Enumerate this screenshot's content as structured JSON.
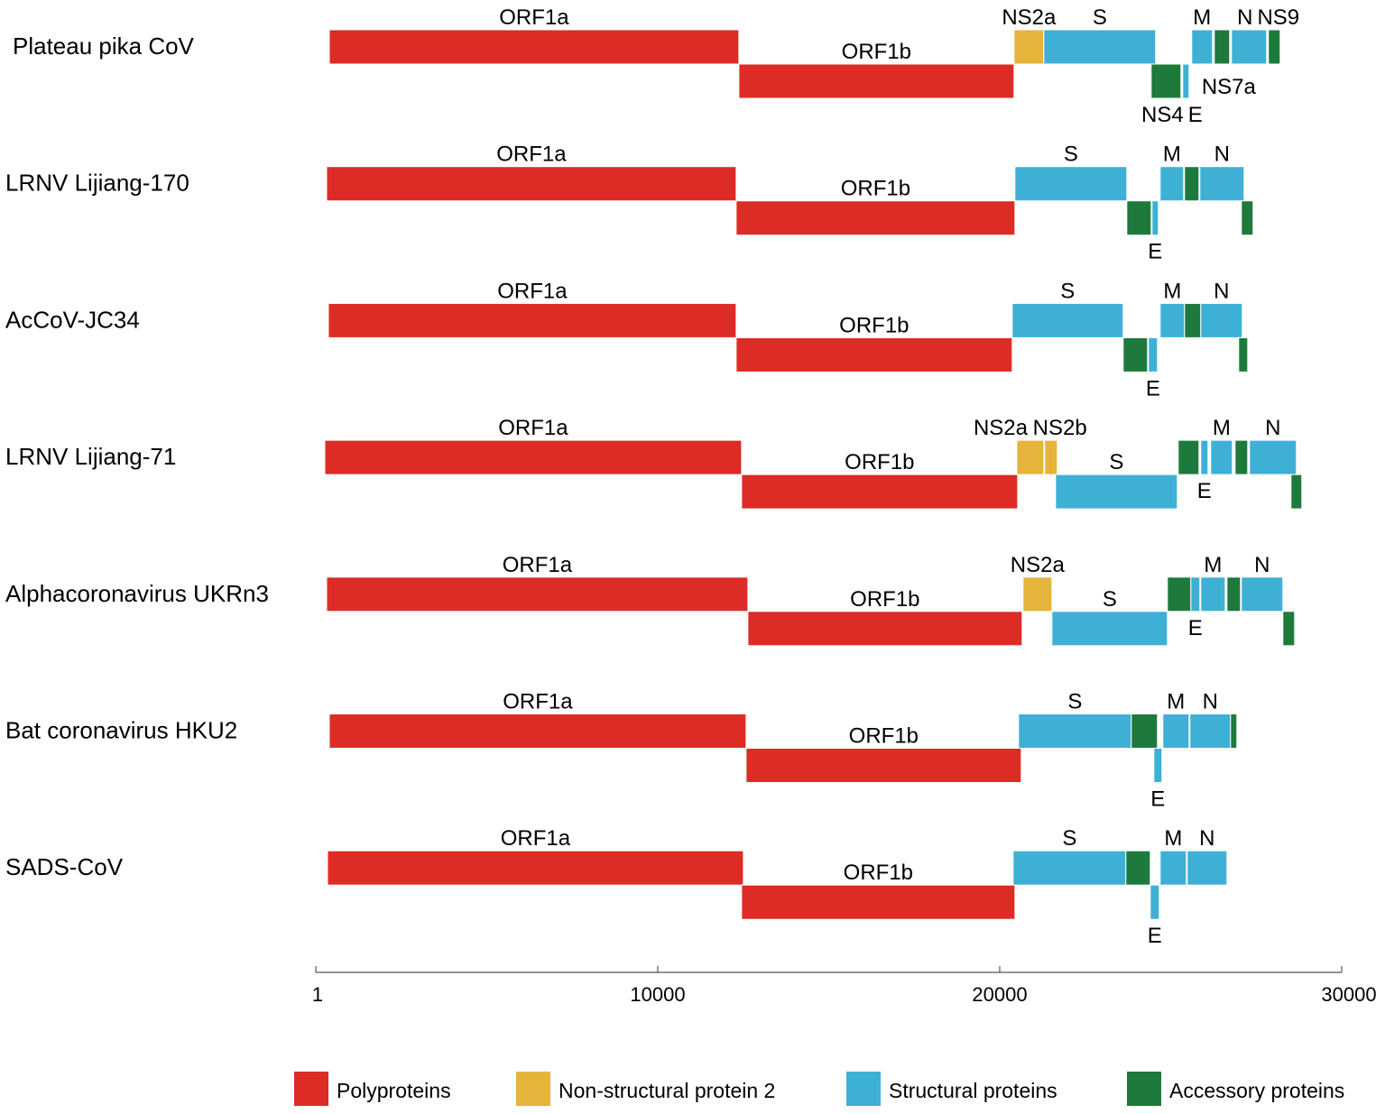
{
  "colors": {
    "polyprotein": "#dd2c25",
    "ns2": "#e6b43a",
    "structural": "#3fb0d5",
    "accessory": "#1e7a3c"
  },
  "axis": {
    "min": 1,
    "max": 30000,
    "ticks": [
      {
        "value": 1,
        "label": "1"
      },
      {
        "value": 10000,
        "label": "10000"
      },
      {
        "value": 20000,
        "label": "20000"
      },
      {
        "value": 30000,
        "label": "30000"
      }
    ]
  },
  "legend": [
    {
      "type": "polyprotein",
      "label": "Polyproteins"
    },
    {
      "type": "ns2",
      "label": "Non-structural protein 2"
    },
    {
      "type": "structural",
      "label": "Structural proteins"
    },
    {
      "type": "accessory",
      "label": "Accessory proteins"
    }
  ],
  "genomes": [
    {
      "name": "Plateau pika CoV",
      "genes": [
        {
          "start": 396,
          "end": 12372,
          "lane": "top",
          "type": "polyprotein",
          "label": "ORF1a",
          "label_pos": "above"
        },
        {
          "start": 12372,
          "end": 20418,
          "lane": "bottom",
          "type": "polyprotein",
          "label": "ORF1b",
          "label_pos": "above"
        },
        {
          "start": 20418,
          "end": 21289,
          "lane": "top",
          "type": "ns2",
          "label": "NS2a",
          "label_pos": "above"
        },
        {
          "start": 21289,
          "end": 24560,
          "lane": "top",
          "type": "structural",
          "label": "S",
          "label_pos": "above"
        },
        {
          "start": 24428,
          "end": 25298,
          "lane": "bottom",
          "type": "accessory",
          "label": "NS4",
          "label_pos": "below"
        },
        {
          "start": 25351,
          "end": 25536,
          "lane": "bottom",
          "type": "structural",
          "label": "E",
          "label_pos": "below-right"
        },
        {
          "start": 25615,
          "end": 26222,
          "lane": "top",
          "type": "structural",
          "label": "M",
          "label_pos": "above"
        },
        {
          "start": 26275,
          "end": 26723,
          "lane": "top",
          "type": "accessory",
          "label": "NS7a",
          "label_pos": "lower"
        },
        {
          "start": 26776,
          "end": 27805,
          "lane": "top",
          "type": "structural",
          "label": "N",
          "label_pos": "above"
        },
        {
          "start": 27857,
          "end": 28200,
          "lane": "top",
          "type": "accessory",
          "label": "NS9",
          "label_pos": "above"
        }
      ]
    },
    {
      "name": "LRNV  Lijiang-170",
      "genes": [
        {
          "start": 317,
          "end": 12293,
          "lane": "top",
          "type": "polyprotein",
          "label": "ORF1a",
          "label_pos": "above"
        },
        {
          "start": 12293,
          "end": 20445,
          "lane": "bottom",
          "type": "polyprotein",
          "label": "ORF1b",
          "label_pos": "above"
        },
        {
          "start": 20445,
          "end": 23716,
          "lane": "top",
          "type": "structural",
          "label": "S",
          "label_pos": "above"
        },
        {
          "start": 23716,
          "end": 24428,
          "lane": "bottom",
          "type": "accessory",
          "label": "",
          "label_pos": ""
        },
        {
          "start": 24454,
          "end": 24639,
          "lane": "bottom",
          "type": "structural",
          "label": "E",
          "label_pos": "below"
        },
        {
          "start": 24692,
          "end": 25378,
          "lane": "top",
          "type": "structural",
          "label": "M",
          "label_pos": "above"
        },
        {
          "start": 25404,
          "end": 25826,
          "lane": "top",
          "type": "accessory",
          "label": "",
          "label_pos": ""
        },
        {
          "start": 25852,
          "end": 27145,
          "lane": "top",
          "type": "structural",
          "label": "N",
          "label_pos": "above"
        },
        {
          "start": 27066,
          "end": 27409,
          "lane": "bottom",
          "type": "accessory",
          "label": "",
          "label_pos": ""
        }
      ]
    },
    {
      "name": "AcCoV-JC34",
      "genes": [
        {
          "start": 369,
          "end": 12293,
          "lane": "top",
          "type": "polyprotein",
          "label": "ORF1a",
          "label_pos": "above"
        },
        {
          "start": 12293,
          "end": 20365,
          "lane": "bottom",
          "type": "polyprotein",
          "label": "ORF1b",
          "label_pos": "above"
        },
        {
          "start": 20365,
          "end": 23610,
          "lane": "top",
          "type": "structural",
          "label": "S",
          "label_pos": "above"
        },
        {
          "start": 23610,
          "end": 24323,
          "lane": "bottom",
          "type": "accessory",
          "label": "",
          "label_pos": ""
        },
        {
          "start": 24349,
          "end": 24613,
          "lane": "bottom",
          "type": "structural",
          "label": "E",
          "label_pos": "below"
        },
        {
          "start": 24692,
          "end": 25404,
          "lane": "top",
          "type": "structural",
          "label": "M",
          "label_pos": "above"
        },
        {
          "start": 25404,
          "end": 25879,
          "lane": "top",
          "type": "accessory",
          "label": "",
          "label_pos": ""
        },
        {
          "start": 25879,
          "end": 27093,
          "lane": "top",
          "type": "structural",
          "label": "N",
          "label_pos": "above"
        },
        {
          "start": 26987,
          "end": 27251,
          "lane": "bottom",
          "type": "accessory",
          "label": "",
          "label_pos": ""
        }
      ]
    },
    {
      "name": "LRNV Lijiang-71",
      "genes": [
        {
          "start": 264,
          "end": 12451,
          "lane": "top",
          "type": "polyprotein",
          "label": "ORF1a",
          "label_pos": "above"
        },
        {
          "start": 12451,
          "end": 20524,
          "lane": "bottom",
          "type": "polyprotein",
          "label": "ORF1b",
          "label_pos": "above"
        },
        {
          "start": 20498,
          "end": 21289,
          "lane": "top",
          "type": "ns2",
          "label": "NS2a",
          "label_pos": "above-left"
        },
        {
          "start": 21315,
          "end": 21684,
          "lane": "top",
          "type": "ns2",
          "label": "NS2b",
          "label_pos": "above"
        },
        {
          "start": 21632,
          "end": 25193,
          "lane": "bottom",
          "type": "structural",
          "label": "S",
          "label_pos": "above"
        },
        {
          "start": 25219,
          "end": 25826,
          "lane": "top",
          "type": "accessory",
          "label": "",
          "label_pos": ""
        },
        {
          "start": 25879,
          "end": 26090,
          "lane": "top",
          "type": "structural",
          "label": "E",
          "label_pos": "below"
        },
        {
          "start": 26169,
          "end": 26803,
          "lane": "top",
          "type": "structural",
          "label": "M",
          "label_pos": "above"
        },
        {
          "start": 26882,
          "end": 27251,
          "lane": "top",
          "type": "accessory",
          "label": "",
          "label_pos": ""
        },
        {
          "start": 27303,
          "end": 28675,
          "lane": "top",
          "type": "structural",
          "label": "N",
          "label_pos": "above"
        },
        {
          "start": 28517,
          "end": 28833,
          "lane": "bottom",
          "type": "accessory",
          "label": "",
          "label_pos": ""
        }
      ]
    },
    {
      "name": "Alphacoronavirus UKRn3",
      "genes": [
        {
          "start": 317,
          "end": 12636,
          "lane": "top",
          "type": "polyprotein",
          "label": "ORF1a",
          "label_pos": "above"
        },
        {
          "start": 12636,
          "end": 20655,
          "lane": "bottom",
          "type": "polyprotein",
          "label": "ORF1b",
          "label_pos": "above"
        },
        {
          "start": 20682,
          "end": 21526,
          "lane": "top",
          "type": "ns2",
          "label": "NS2a",
          "label_pos": "above"
        },
        {
          "start": 21526,
          "end": 24903,
          "lane": "bottom",
          "type": "structural",
          "label": "S",
          "label_pos": "above"
        },
        {
          "start": 24903,
          "end": 25589,
          "lane": "top",
          "type": "accessory",
          "label": "",
          "label_pos": ""
        },
        {
          "start": 25589,
          "end": 25852,
          "lane": "top",
          "type": "structural",
          "label": "E",
          "label_pos": "below"
        },
        {
          "start": 25879,
          "end": 26592,
          "lane": "top",
          "type": "structural",
          "label": "M",
          "label_pos": "above"
        },
        {
          "start": 26645,
          "end": 27040,
          "lane": "top",
          "type": "accessory",
          "label": "",
          "label_pos": ""
        },
        {
          "start": 27066,
          "end": 28280,
          "lane": "top",
          "type": "structural",
          "label": "N",
          "label_pos": "above"
        },
        {
          "start": 28280,
          "end": 28623,
          "lane": "bottom",
          "type": "accessory",
          "label": "",
          "label_pos": ""
        }
      ]
    },
    {
      "name": "Bat coronavirus HKU2",
      "genes": [
        {
          "start": 396,
          "end": 12583,
          "lane": "top",
          "type": "polyprotein",
          "label": "ORF1a",
          "label_pos": "above"
        },
        {
          "start": 12583,
          "end": 20629,
          "lane": "bottom",
          "type": "polyprotein",
          "label": "ORF1b",
          "label_pos": "above"
        },
        {
          "start": 20550,
          "end": 23848,
          "lane": "top",
          "type": "structural",
          "label": "S",
          "label_pos": "above"
        },
        {
          "start": 23848,
          "end": 24613,
          "lane": "top",
          "type": "accessory",
          "label": "",
          "label_pos": ""
        },
        {
          "start": 24507,
          "end": 24744,
          "lane": "bottom",
          "type": "structural",
          "label": "E",
          "label_pos": "below"
        },
        {
          "start": 24771,
          "end": 25536,
          "lane": "top",
          "type": "structural",
          "label": "M",
          "label_pos": "above"
        },
        {
          "start": 25562,
          "end": 26750,
          "lane": "top",
          "type": "structural",
          "label": "N",
          "label_pos": "above"
        },
        {
          "start": 26750,
          "end": 26934,
          "lane": "top",
          "type": "accessory",
          "label": "",
          "label_pos": ""
        }
      ]
    },
    {
      "name": "SADS-CoV",
      "genes": [
        {
          "start": 343,
          "end": 12504,
          "lane": "top",
          "type": "polyprotein",
          "label": "ORF1a",
          "label_pos": "above"
        },
        {
          "start": 12451,
          "end": 20445,
          "lane": "bottom",
          "type": "polyprotein",
          "label": "ORF1b",
          "label_pos": "above"
        },
        {
          "start": 20392,
          "end": 23689,
          "lane": "top",
          "type": "structural",
          "label": "S",
          "label_pos": "above"
        },
        {
          "start": 23689,
          "end": 24402,
          "lane": "top",
          "type": "accessory",
          "label": "",
          "label_pos": ""
        },
        {
          "start": 24402,
          "end": 24665,
          "lane": "bottom",
          "type": "structural",
          "label": "E",
          "label_pos": "below"
        },
        {
          "start": 24692,
          "end": 25457,
          "lane": "top",
          "type": "structural",
          "label": "M",
          "label_pos": "above"
        },
        {
          "start": 25483,
          "end": 26645,
          "lane": "top",
          "type": "structural",
          "label": "N",
          "label_pos": "above"
        }
      ]
    }
  ]
}
